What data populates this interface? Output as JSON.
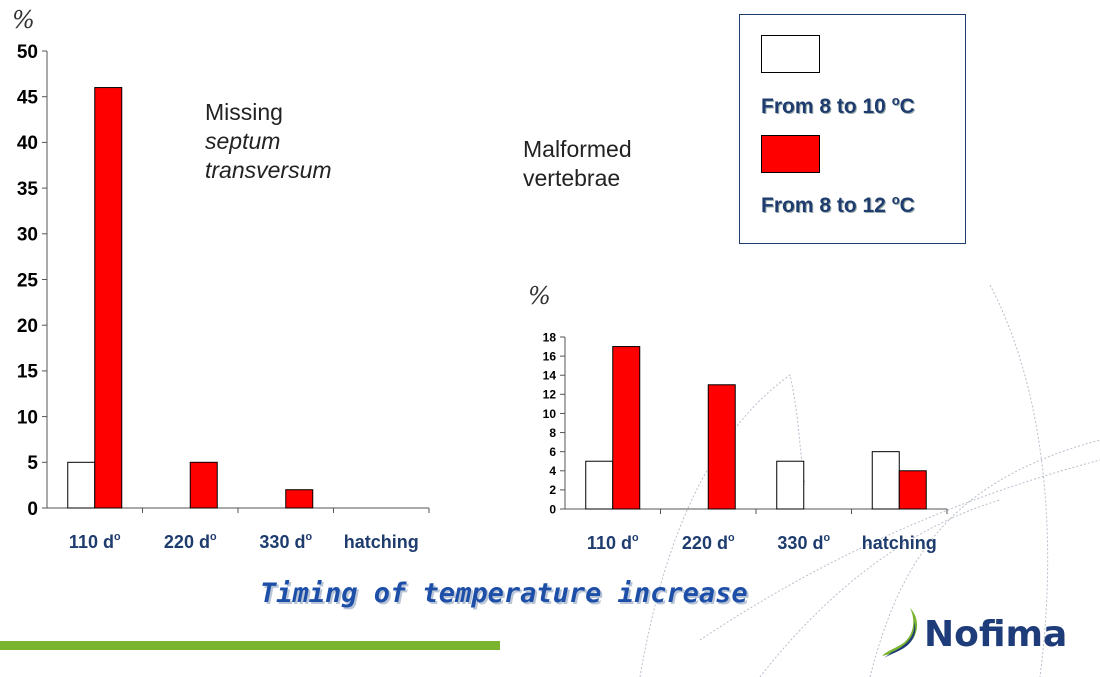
{
  "colors": {
    "series_white": "#ffffff",
    "series_red": "#ff0000",
    "axis": "#555555",
    "title_blue": "#1d4fa8",
    "logo_navy": "#1f3c7a",
    "logo_green": "#7ab32e",
    "bar_green": "#7ab32e"
  },
  "legend": {
    "items": [
      {
        "label": "From 8 to 10 ",
        "sup": "o",
        "unit": "C",
        "color": "#ffffff"
      },
      {
        "label": "From 8 to 12 ",
        "sup": "o",
        "unit": "C",
        "color": "#ff0000"
      }
    ]
  },
  "annotations": {
    "left": {
      "line1": "Missing",
      "line2": "septum",
      "line3": "transversum"
    },
    "right": {
      "line1": "Malformed",
      "line2": "vertebrae"
    }
  },
  "footer": {
    "title": "Timing of temperature increase"
  },
  "logo": {
    "text": "Nofima",
    "icon": "nofima-leaf-icon"
  },
  "chart_data": [
    {
      "type": "bar",
      "title": "",
      "ylabel": "%",
      "xlabel": "",
      "ylim": [
        0,
        50
      ],
      "yticks": [
        0,
        5,
        10,
        15,
        20,
        25,
        30,
        35,
        40,
        45,
        50
      ],
      "categories": [
        {
          "label": "110 d",
          "sup": "o"
        },
        {
          "label": "220 d",
          "sup": "o"
        },
        {
          "label": "330 d",
          "sup": "o"
        },
        {
          "label": "hatching",
          "sup": ""
        }
      ],
      "series": [
        {
          "color": "#ffffff",
          "values": [
            5,
            null,
            null,
            null
          ]
        },
        {
          "color": "#ff0000",
          "values": [
            46,
            5,
            2,
            null
          ]
        }
      ]
    },
    {
      "type": "bar",
      "title": "",
      "ylabel": "%",
      "xlabel": "",
      "ylim": [
        0,
        18
      ],
      "yticks": [
        0,
        2,
        4,
        6,
        8,
        10,
        12,
        14,
        16,
        18
      ],
      "categories": [
        {
          "label": "110 d",
          "sup": "o"
        },
        {
          "label": "220 d",
          "sup": "o"
        },
        {
          "label": "330 d",
          "sup": "o"
        },
        {
          "label": "hatching",
          "sup": ""
        }
      ],
      "series": [
        {
          "color": "#ffffff",
          "values": [
            5,
            null,
            5,
            6
          ]
        },
        {
          "color": "#ff0000",
          "values": [
            17,
            13,
            null,
            4
          ]
        }
      ]
    }
  ]
}
